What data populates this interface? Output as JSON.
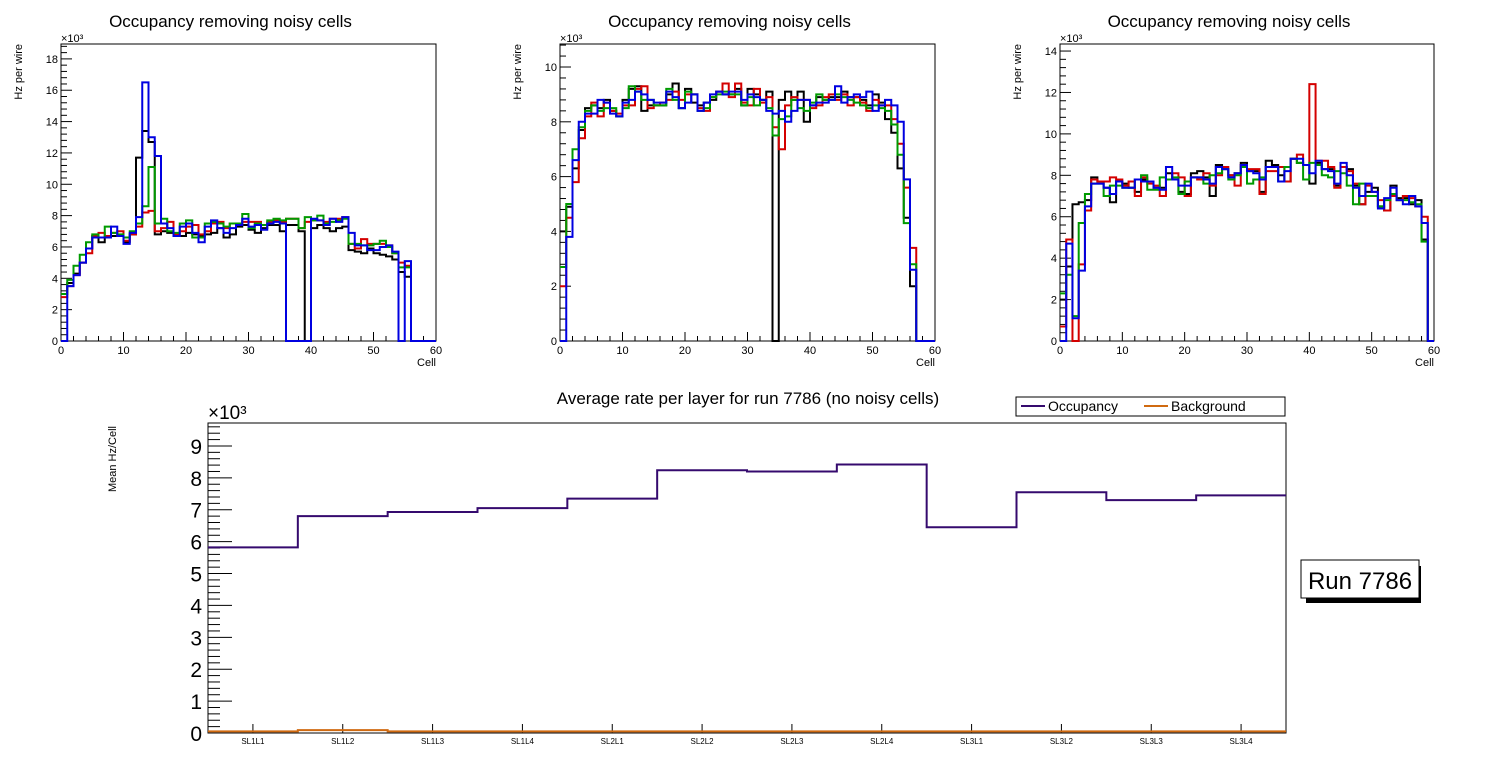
{
  "colors": {
    "black": "#000000",
    "red": "#d40000",
    "green": "#009a00",
    "blue": "#0000e0",
    "occupancy": "#350a6e",
    "background": "#d06a10"
  },
  "chart_data": [
    {
      "type": "line",
      "subtype": "histogram-step",
      "title": "Occupancy removing noisy cells",
      "xlabel": "Cell",
      "ylabel": "Hz per wire",
      "y_multiplier": "×10³",
      "xlim": [
        0,
        60
      ],
      "ylim": [
        0,
        18.95
      ],
      "bins": 60,
      "x_ticks": [
        "0",
        "10",
        "20",
        "30",
        "40",
        "50",
        "60"
      ],
      "y_ticks": [
        "0",
        "2",
        "4",
        "6",
        "8",
        "10",
        "12",
        "14",
        "16",
        "18"
      ],
      "series": [
        {
          "name": "black",
          "color": "#000000",
          "values": [
            3.0,
            3.7,
            4.3,
            5.0,
            5.9,
            6.7,
            6.3,
            6.6,
            6.7,
            6.7,
            6.3,
            6.8,
            11.7,
            13.4,
            12.7,
            6.8,
            7.0,
            6.9,
            6.7,
            6.7,
            6.9,
            6.8,
            6.7,
            6.8,
            6.9,
            7.2,
            6.6,
            6.8,
            7.3,
            7.4,
            7.1,
            6.9,
            7.2,
            7.4,
            7.4,
            7.0,
            7.4,
            7.4,
            7.0,
            0,
            7.2,
            7.4,
            7.2,
            7.0,
            7.2,
            7.3,
            5.8,
            5.7,
            5.6,
            5.9,
            5.6,
            5.5,
            5.4,
            5.2,
            4.4,
            4.1,
            0,
            0,
            0,
            0
          ]
        },
        {
          "name": "red",
          "color": "#d40000",
          "values": [
            2.8,
            3.5,
            4.2,
            5.0,
            5.6,
            6.7,
            6.9,
            6.7,
            6.9,
            7.0,
            6.4,
            6.8,
            7.3,
            8.2,
            8.3,
            7.0,
            7.2,
            7.6,
            6.8,
            7.0,
            7.3,
            7.4,
            6.8,
            7.0,
            7.5,
            7.6,
            7.2,
            7.5,
            7.4,
            7.6,
            7.6,
            7.6,
            7.4,
            7.6,
            7.7,
            7.6,
            7.8,
            7.8,
            7.2,
            7.6,
            7.7,
            7.7,
            7.6,
            7.8,
            7.8,
            7.9,
            6.2,
            5.9,
            6.5,
            6.2,
            6.2,
            6.2,
            6.1,
            5.6,
            5.0,
            4.8,
            0,
            0,
            0,
            0
          ]
        },
        {
          "name": "green",
          "color": "#009a00",
          "values": [
            3.0,
            3.9,
            4.8,
            5.5,
            6.3,
            6.8,
            6.6,
            7.3,
            6.9,
            6.8,
            6.6,
            7.0,
            7.5,
            8.6,
            11.1,
            7.5,
            7.8,
            7.0,
            6.9,
            7.5,
            7.7,
            6.6,
            6.6,
            7.5,
            7.6,
            7.5,
            7.3,
            7.5,
            7.5,
            8.1,
            7.2,
            7.5,
            7.4,
            7.7,
            7.8,
            7.7,
            7.8,
            7.8,
            7.2,
            7.9,
            7.7,
            8.0,
            7.5,
            7.6,
            7.7,
            7.8,
            6.2,
            6.2,
            6.1,
            6.1,
            6.2,
            6.4,
            6.0,
            5.6,
            4.7,
            4.7,
            0,
            0,
            0,
            0
          ]
        },
        {
          "name": "blue",
          "color": "#0000e0",
          "values": [
            0,
            3.5,
            4.2,
            5.0,
            5.9,
            6.6,
            6.6,
            6.6,
            7.3,
            6.7,
            6.2,
            6.9,
            7.9,
            16.5,
            13.0,
            11.8,
            7.5,
            7.2,
            6.7,
            7.3,
            7.5,
            6.9,
            6.3,
            7.3,
            7.7,
            7.2,
            6.9,
            7.2,
            7.4,
            7.8,
            7.3,
            7.4,
            7.1,
            7.5,
            7.6,
            7.5,
            0,
            0,
            0,
            0,
            7.8,
            7.7,
            7.4,
            7.8,
            7.6,
            7.9,
            6.9,
            6.1,
            6.1,
            5.8,
            5.8,
            6.0,
            6.1,
            5.7,
            0,
            5.1,
            0,
            0,
            0,
            0
          ]
        }
      ]
    },
    {
      "type": "line",
      "subtype": "histogram-step",
      "title": "Occupancy removing noisy cells",
      "xlabel": "Cell",
      "ylabel": "Hz per wire",
      "y_multiplier": "×10³",
      "xlim": [
        0,
        60
      ],
      "ylim": [
        0,
        10.84
      ],
      "bins": 60,
      "x_ticks": [
        "0",
        "10",
        "20",
        "30",
        "40",
        "50",
        "60"
      ],
      "y_ticks": [
        "0",
        "2",
        "4",
        "6",
        "8",
        "10"
      ],
      "series": [
        {
          "name": "black",
          "color": "#000000",
          "values": [
            4.0,
            4.9,
            6.3,
            7.7,
            8.5,
            8.6,
            8.5,
            8.8,
            8.4,
            8.2,
            8.8,
            9.2,
            9.3,
            8.4,
            8.6,
            8.6,
            8.6,
            9.0,
            9.4,
            8.5,
            9.2,
            8.7,
            8.6,
            8.7,
            8.8,
            9.1,
            9.0,
            9.0,
            9.2,
            8.6,
            9.2,
            9.0,
            8.8,
            9.1,
            0,
            8.8,
            9.1,
            8.8,
            9.1,
            8.0,
            8.6,
            8.9,
            8.8,
            8.9,
            8.9,
            9.1,
            8.9,
            8.9,
            8.8,
            8.6,
            9.0,
            8.7,
            8.1,
            7.6,
            6.3,
            4.5,
            2.0,
            0,
            0,
            0
          ]
        },
        {
          "name": "red",
          "color": "#d40000",
          "values": [
            2.0,
            4.5,
            5.8,
            7.4,
            8.2,
            8.7,
            8.2,
            8.7,
            8.4,
            8.3,
            8.6,
            8.6,
            9.2,
            9.3,
            8.5,
            8.6,
            8.7,
            8.8,
            9.1,
            8.8,
            9.0,
            9.0,
            8.5,
            8.4,
            8.9,
            9.1,
            9.4,
            8.9,
            9.4,
            8.7,
            8.6,
            9.2,
            8.7,
            8.9,
            7.8,
            7.0,
            8.6,
            8.9,
            8.8,
            8.8,
            8.5,
            8.6,
            8.9,
            9.0,
            8.8,
            9.0,
            8.6,
            8.9,
            8.7,
            8.4,
            8.8,
            8.6,
            8.6,
            8.1,
            7.2,
            5.6,
            3.4,
            0,
            0,
            0
          ]
        },
        {
          "name": "green",
          "color": "#009a00",
          "values": [
            2.7,
            5.0,
            7.0,
            7.8,
            8.4,
            8.6,
            8.4,
            8.5,
            8.5,
            8.2,
            8.5,
            9.3,
            9.1,
            8.8,
            8.8,
            8.6,
            8.6,
            9.2,
            8.8,
            8.5,
            9.1,
            9.0,
            8.4,
            8.5,
            8.9,
            9.0,
            9.1,
            9.0,
            9.0,
            8.6,
            8.9,
            8.6,
            8.8,
            8.5,
            7.5,
            8.1,
            8.2,
            8.8,
            8.5,
            8.4,
            8.7,
            9.0,
            8.8,
            8.8,
            9.0,
            8.9,
            8.8,
            8.7,
            8.6,
            8.5,
            8.6,
            8.5,
            8.4,
            7.9,
            6.8,
            4.3,
            2.8,
            0,
            0,
            0
          ]
        },
        {
          "name": "blue",
          "color": "#0000e0",
          "values": [
            0,
            3.8,
            6.6,
            8.0,
            8.3,
            8.3,
            8.8,
            8.7,
            8.3,
            8.2,
            8.7,
            8.8,
            9.1,
            9.0,
            8.8,
            8.7,
            8.7,
            9.1,
            8.9,
            8.5,
            8.7,
            9.0,
            8.4,
            8.7,
            9.0,
            9.1,
            9.0,
            9.1,
            9.1,
            8.8,
            9.0,
            8.9,
            8.8,
            8.4,
            8.3,
            8.4,
            8.0,
            8.4,
            8.8,
            8.8,
            8.6,
            8.7,
            8.7,
            8.8,
            9.3,
            8.7,
            8.9,
            9.0,
            8.9,
            9.1,
            8.4,
            8.6,
            8.8,
            8.6,
            8.0,
            5.9,
            2.6,
            0,
            0,
            0
          ]
        }
      ]
    },
    {
      "type": "line",
      "subtype": "histogram-step",
      "title": "Occupancy removing noisy cells",
      "xlabel": "Cell",
      "ylabel": "Hz per wire",
      "y_multiplier": "×10³",
      "xlim": [
        0,
        60
      ],
      "ylim": [
        0,
        14.34
      ],
      "bins": 60,
      "x_ticks": [
        "0",
        "10",
        "20",
        "30",
        "40",
        "50",
        "60"
      ],
      "y_ticks": [
        "0",
        "2",
        "4",
        "6",
        "8",
        "10",
        "12",
        "14"
      ],
      "series": [
        {
          "name": "black",
          "color": "#000000",
          "values": [
            2.0,
            3.6,
            6.6,
            6.7,
            6.8,
            7.9,
            7.7,
            7.4,
            6.7,
            7.7,
            7.6,
            7.4,
            7.2,
            7.8,
            7.7,
            7.4,
            7.4,
            8.1,
            7.8,
            7.2,
            7.1,
            8.1,
            8.2,
            7.9,
            7.0,
            8.5,
            8.3,
            8.0,
            8.1,
            8.6,
            8.2,
            8.2,
            7.2,
            8.7,
            8.5,
            8.0,
            7.7,
            8.8,
            8.6,
            8.5,
            7.6,
            8.6,
            8.3,
            8.3,
            7.5,
            8.4,
            8.3,
            7.5,
            6.6,
            7.2,
            7.4,
            6.5,
            6.3,
            7.5,
            6.9,
            6.9,
            6.6,
            6.8,
            4.9,
            0
          ]
        },
        {
          "name": "red",
          "color": "#d40000",
          "values": [
            0.7,
            4.9,
            0,
            3.7,
            6.3,
            7.8,
            7.7,
            7.7,
            7.9,
            7.8,
            7.5,
            7.7,
            7.0,
            7.9,
            7.6,
            7.5,
            7.0,
            7.8,
            8.1,
            7.9,
            7.0,
            7.9,
            7.8,
            8.1,
            7.5,
            8.0,
            8.4,
            8.0,
            7.5,
            8.5,
            8.3,
            8.3,
            7.1,
            8.2,
            8.2,
            8.4,
            7.7,
            8.8,
            9.0,
            8.5,
            12.4,
            8.7,
            8.7,
            8.4,
            7.4,
            8.4,
            8.2,
            7.6,
            6.6,
            7.5,
            7.2,
            6.8,
            6.3,
            7.0,
            6.8,
            7.0,
            6.9,
            6.5,
            6.0,
            0
          ]
        },
        {
          "name": "green",
          "color": "#009a00",
          "values": [
            2.3,
            3.2,
            1.2,
            5.7,
            7.1,
            7.6,
            7.6,
            7.0,
            7.5,
            7.5,
            7.4,
            7.4,
            7.8,
            8.0,
            7.3,
            7.3,
            7.9,
            7.8,
            7.9,
            7.1,
            7.7,
            7.9,
            7.9,
            7.6,
            8.0,
            8.1,
            8.3,
            7.8,
            8.0,
            8.4,
            7.6,
            7.8,
            7.9,
            8.4,
            8.4,
            7.7,
            8.4,
            8.8,
            8.6,
            7.8,
            8.6,
            8.5,
            8.0,
            7.9,
            8.2,
            8.1,
            7.5,
            6.6,
            7.6,
            7.0,
            7.0,
            6.5,
            6.8,
            7.1,
            6.8,
            6.8,
            6.7,
            6.6,
            4.8,
            0
          ]
        },
        {
          "name": "blue",
          "color": "#0000e0",
          "values": [
            0,
            4.7,
            1.1,
            3.4,
            6.5,
            7.6,
            7.6,
            7.4,
            7.1,
            7.7,
            7.4,
            7.4,
            7.8,
            7.7,
            7.7,
            7.4,
            7.3,
            8.4,
            7.8,
            7.5,
            7.5,
            7.9,
            7.9,
            7.8,
            7.6,
            8.4,
            8.3,
            7.9,
            8.1,
            8.5,
            8.2,
            8.1,
            7.8,
            8.4,
            8.4,
            7.7,
            8.2,
            8.8,
            8.8,
            8.5,
            8.1,
            8.7,
            8.3,
            8.2,
            7.6,
            8.6,
            8.0,
            7.4,
            7.0,
            7.6,
            7.2,
            6.4,
            6.9,
            7.4,
            6.8,
            6.6,
            7.0,
            6.5,
            5.7,
            0
          ]
        }
      ]
    },
    {
      "type": "line",
      "subtype": "histogram-step",
      "title": "Average rate per layer for run 7786 (no noisy cells)",
      "xlabel": "",
      "ylabel": "Mean Hz/Cell",
      "y_multiplier": "×10³",
      "ylim": [
        0,
        9.72
      ],
      "categories": [
        "SL1L1",
        "SL1L2",
        "SL1L3",
        "SL1L4",
        "SL2L1",
        "SL2L2",
        "SL2L3",
        "SL2L4",
        "SL3L1",
        "SL3L2",
        "SL3L3",
        "SL3L4"
      ],
      "y_ticks": [
        "0",
        "1",
        "2",
        "3",
        "4",
        "5",
        "6",
        "7",
        "8",
        "9"
      ],
      "legend_position": "top-right",
      "series": [
        {
          "name": "Occupancy",
          "color": "#350a6e",
          "values": [
            5.82,
            6.8,
            6.93,
            7.05,
            7.35,
            8.24,
            8.2,
            8.42,
            6.45,
            7.55,
            7.3,
            7.45
          ]
        },
        {
          "name": "Background",
          "color": "#d06a10",
          "values": [
            0.05,
            0.09,
            0.05,
            0.05,
            0.05,
            0.05,
            0.05,
            0.05,
            0.05,
            0.05,
            0.05,
            0.05
          ]
        }
      ],
      "annotation": "Run 7786"
    }
  ]
}
